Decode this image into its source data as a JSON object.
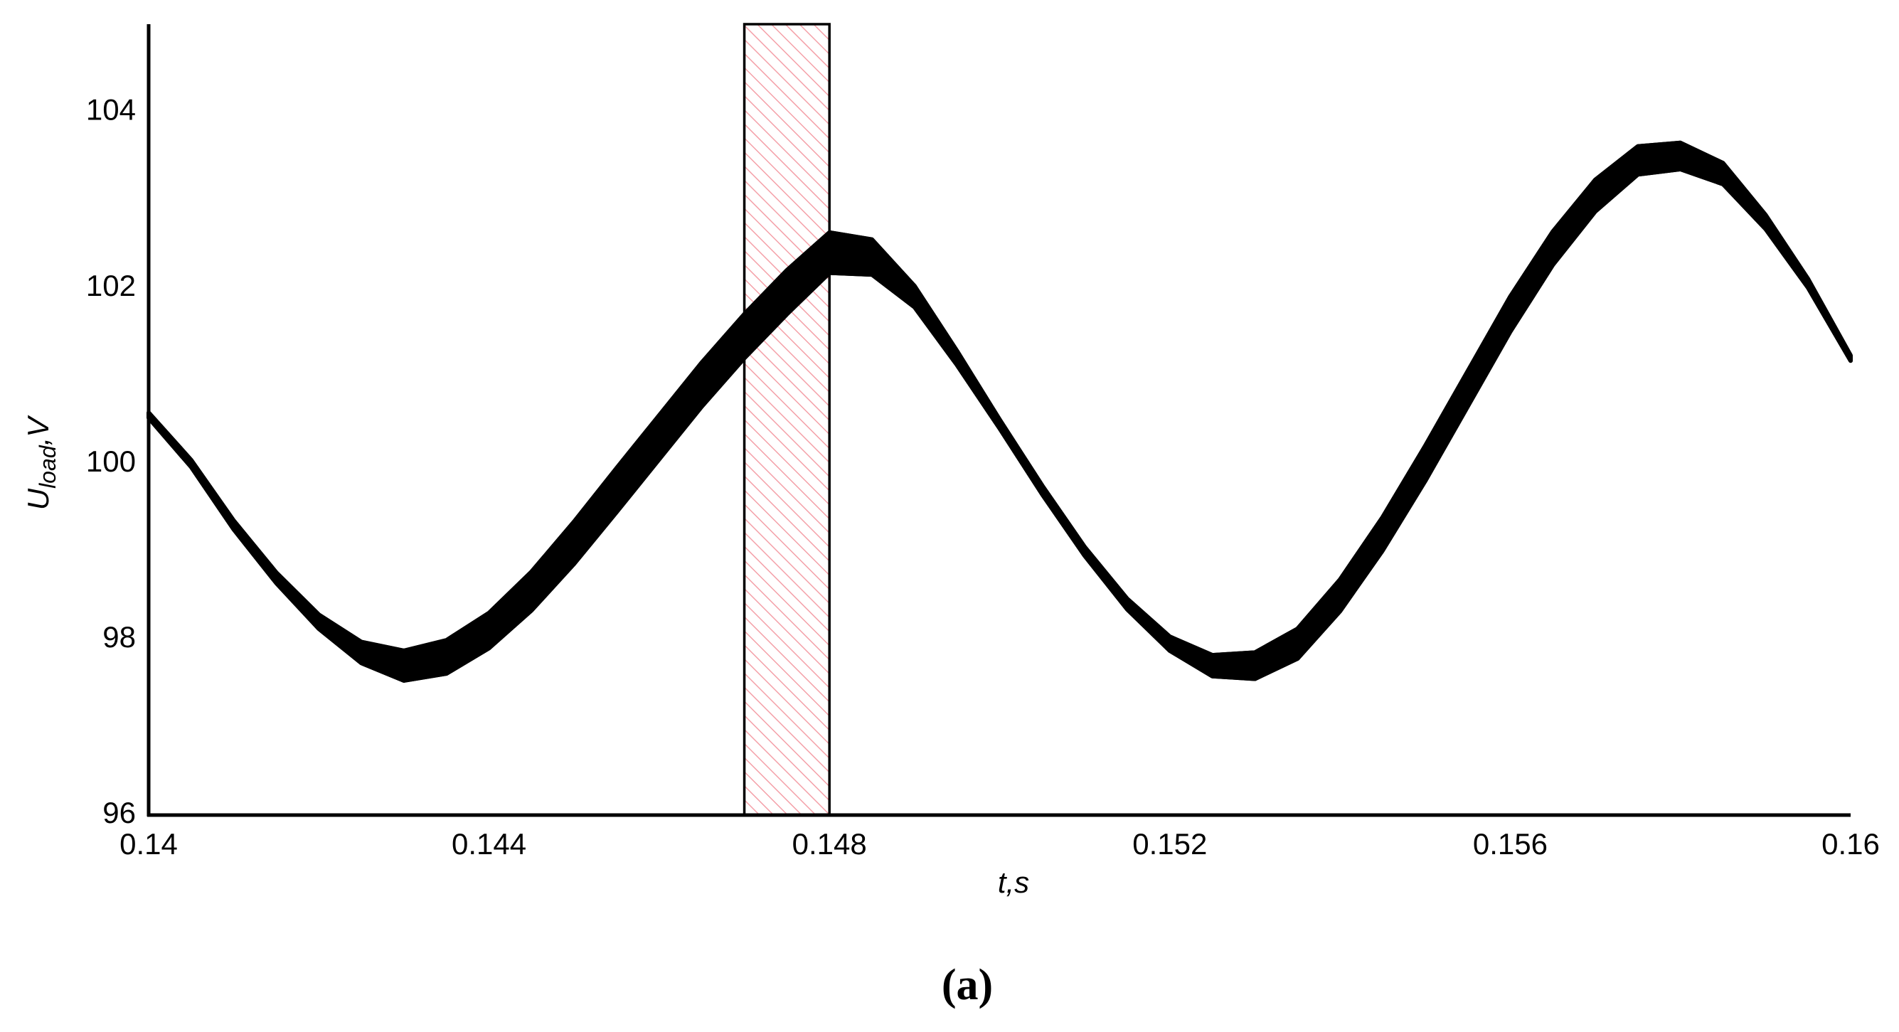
{
  "chart_data": {
    "type": "band",
    "xlabel": "t,s",
    "ylabel": {
      "main": "U",
      "sub": "load",
      "rest": ",V"
    },
    "caption": "(a)",
    "xlim": [
      0.14,
      0.16
    ],
    "ylim": [
      96,
      105
    ],
    "xticks": [
      0.14,
      0.144,
      0.148,
      0.152,
      0.156,
      0.16
    ],
    "yticks": [
      96,
      98,
      100,
      102,
      104
    ],
    "xminor": [
      0.142,
      0.146,
      0.15,
      0.154,
      0.158
    ],
    "yminor": [
      97,
      99,
      101,
      103,
      105
    ],
    "grid": true,
    "highlight": {
      "xlim": [
        0.147,
        0.148
      ],
      "color": "#f4a0a8"
    },
    "x": [
      0.14,
      0.1405,
      0.141,
      0.1415,
      0.142,
      0.1425,
      0.143,
      0.1435,
      0.144,
      0.1445,
      0.145,
      0.1455,
      0.146,
      0.1465,
      0.147,
      0.1475,
      0.148,
      0.1485,
      0.149,
      0.1495,
      0.15,
      0.1505,
      0.151,
      0.1515,
      0.152,
      0.1525,
      0.153,
      0.1535,
      0.154,
      0.1545,
      0.155,
      0.1555,
      0.156,
      0.1565,
      0.157,
      0.1575,
      0.158,
      0.1585,
      0.159,
      0.1595,
      0.16
    ],
    "series": [
      {
        "color": "#000000",
        "values": [
          100.58,
          100.04,
          99.35,
          98.76,
          98.28,
          97.97,
          97.87,
          97.99,
          98.3,
          98.77,
          99.34,
          99.95,
          100.55,
          101.15,
          101.7,
          102.2,
          102.63,
          102.55,
          102.02,
          101.28,
          100.5,
          99.75,
          99.05,
          98.46,
          98.03,
          97.82,
          97.85,
          98.12,
          98.68,
          99.39,
          100.2,
          101.05,
          101.9,
          102.64,
          103.23,
          103.61,
          103.65,
          103.42,
          102.83,
          102.1,
          101.23
        ]
      },
      {
        "color": "#000000",
        "values": [
          100.52,
          99.96,
          99.25,
          98.64,
          98.12,
          97.73,
          97.53,
          97.61,
          97.9,
          98.33,
          98.86,
          99.45,
          100.05,
          100.65,
          101.2,
          101.7,
          102.17,
          102.15,
          101.78,
          101.12,
          100.4,
          99.65,
          98.95,
          98.34,
          97.87,
          97.58,
          97.55,
          97.78,
          98.32,
          99.01,
          99.8,
          100.65,
          101.5,
          102.26,
          102.87,
          103.29,
          103.35,
          103.18,
          102.67,
          102.0,
          101.17
        ]
      }
    ]
  }
}
